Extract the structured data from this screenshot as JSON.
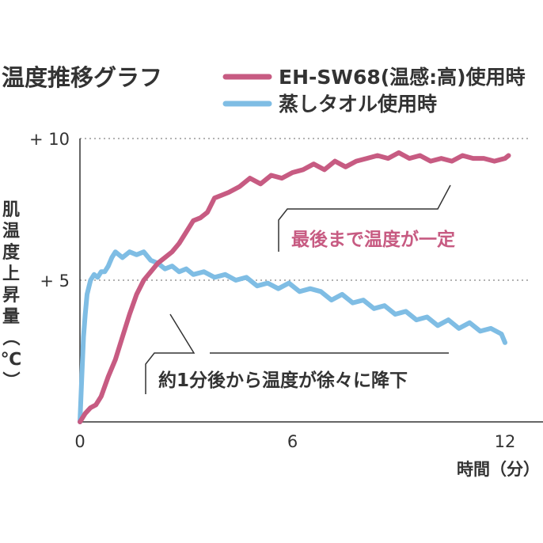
{
  "chart_data": {
    "type": "line",
    "title": "温度推移グラフ",
    "xlabel": "時間（分）",
    "ylabel": "肌温度上昇量（℃）",
    "xlim": [
      0,
      13.2
    ],
    "ylim": [
      0,
      10
    ],
    "x_ticks": [
      {
        "value": 0,
        "label": "0"
      },
      {
        "value": 6,
        "label": "6"
      },
      {
        "value": 12,
        "label": "12"
      }
    ],
    "y_ticks": [
      {
        "value": 5,
        "label": "+ 5"
      },
      {
        "value": 10,
        "label": "+ 10"
      }
    ],
    "grid": "dotted horizontal at y-ticks",
    "legend": "top",
    "series": [
      {
        "name": "EH-SW68(温感:高)使用時",
        "color": "#c75b82",
        "x": [
          0,
          0.15,
          0.3,
          0.45,
          0.6,
          0.8,
          1.0,
          1.2,
          1.4,
          1.6,
          1.8,
          2.0,
          2.2,
          2.4,
          2.6,
          2.8,
          3.0,
          3.2,
          3.4,
          3.6,
          3.8,
          4.0,
          4.2,
          4.5,
          4.8,
          5.1,
          5.4,
          5.7,
          6.0,
          6.3,
          6.6,
          6.9,
          7.2,
          7.5,
          7.8,
          8.1,
          8.4,
          8.7,
          9.0,
          9.3,
          9.6,
          9.9,
          10.2,
          10.5,
          10.8,
          11.1,
          11.4,
          11.7,
          12.0,
          12.1
        ],
        "y": [
          0,
          0.3,
          0.5,
          0.6,
          0.9,
          1.6,
          2.2,
          3.0,
          3.8,
          4.5,
          5.0,
          5.3,
          5.6,
          5.8,
          6.0,
          6.3,
          6.7,
          7.1,
          7.2,
          7.4,
          7.9,
          8.0,
          8.1,
          8.3,
          8.6,
          8.4,
          8.7,
          8.6,
          8.8,
          8.9,
          9.1,
          8.9,
          9.2,
          9.0,
          9.2,
          9.3,
          9.4,
          9.3,
          9.5,
          9.3,
          9.4,
          9.2,
          9.3,
          9.2,
          9.4,
          9.3,
          9.3,
          9.2,
          9.3,
          9.4
        ]
      },
      {
        "name": "蒸しタオル使用時",
        "color": "#7fbde4",
        "x": [
          0,
          0.05,
          0.1,
          0.15,
          0.2,
          0.3,
          0.4,
          0.5,
          0.6,
          0.7,
          0.8,
          0.9,
          1.0,
          1.1,
          1.2,
          1.4,
          1.6,
          1.8,
          2.0,
          2.2,
          2.4,
          2.6,
          2.8,
          3.0,
          3.2,
          3.5,
          3.8,
          4.1,
          4.4,
          4.7,
          5.0,
          5.3,
          5.6,
          5.9,
          6.2,
          6.5,
          6.8,
          7.1,
          7.4,
          7.7,
          8.0,
          8.3,
          8.6,
          8.9,
          9.2,
          9.5,
          9.8,
          10.1,
          10.4,
          10.7,
          11.0,
          11.3,
          11.6,
          11.9,
          12.0
        ],
        "y": [
          0,
          1.5,
          3.0,
          3.8,
          4.5,
          5.0,
          5.2,
          5.1,
          5.3,
          5.3,
          5.5,
          5.8,
          6.0,
          5.9,
          5.8,
          6.0,
          5.9,
          6.0,
          5.7,
          5.6,
          5.4,
          5.5,
          5.3,
          5.4,
          5.2,
          5.3,
          5.1,
          5.2,
          5.0,
          5.1,
          4.8,
          4.9,
          4.7,
          4.9,
          4.6,
          4.7,
          4.6,
          4.3,
          4.5,
          4.2,
          4.3,
          4.0,
          4.1,
          3.8,
          3.9,
          3.6,
          3.7,
          3.4,
          3.6,
          3.3,
          3.5,
          3.2,
          3.3,
          3.1,
          2.8
        ]
      }
    ],
    "annotations": [
      {
        "text": "最後まで温度が一定"
      },
      {
        "text": "約1分後から温度が徐々に降下"
      }
    ]
  }
}
